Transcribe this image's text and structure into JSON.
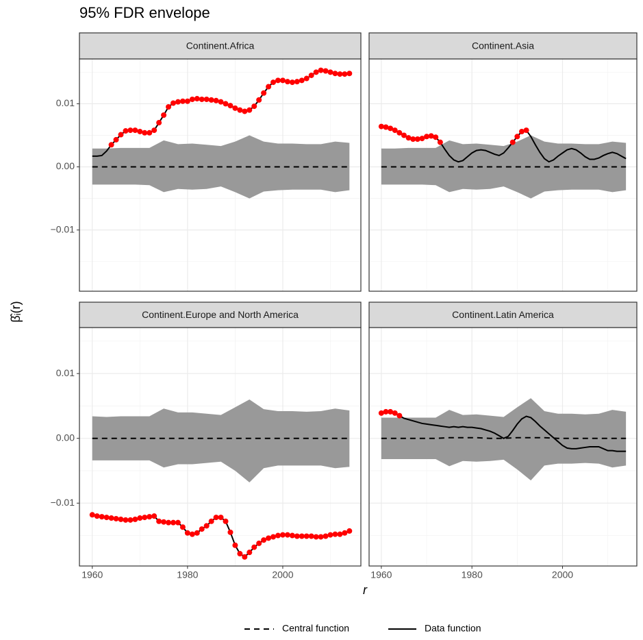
{
  "chart_data": {
    "type": "line",
    "title": "95% FDR envelope",
    "xlabel": "r",
    "ylabel": "β̂ᵢ(r)",
    "xlim": [
      1957.3,
      2016.4
    ],
    "ylim": [
      -0.0197,
      0.0171
    ],
    "xticks": [
      1960,
      1980,
      2000
    ],
    "yticks": [
      {
        "value": -0.01,
        "label": "−0.01"
      },
      {
        "value": 0,
        "label": "0.00"
      },
      0.01
    ],
    "grid": true,
    "data_color": "#000000",
    "point_color": "#ff0000",
    "envelope_color": "#999999",
    "central_name": "Central function",
    "data_name": "Data function",
    "x": [
      1960,
      1961,
      1962,
      1963,
      1964,
      1965,
      1966,
      1967,
      1968,
      1969,
      1970,
      1971,
      1972,
      1973,
      1974,
      1975,
      1976,
      1977,
      1978,
      1979,
      1980,
      1981,
      1982,
      1983,
      1984,
      1985,
      1986,
      1987,
      1988,
      1989,
      1990,
      1991,
      1992,
      1993,
      1994,
      1995,
      1996,
      1997,
      1998,
      1999,
      2000,
      2001,
      2002,
      2003,
      2004,
      2005,
      2006,
      2007,
      2008,
      2009,
      2010,
      2011,
      2012,
      2013,
      2014
    ],
    "envelope_x": [
      1960,
      1963,
      1966,
      1969,
      1972,
      1975,
      1978,
      1981,
      1984,
      1987,
      1990,
      1993,
      1996,
      1999,
      2002,
      2005,
      2008,
      2011,
      2014
    ],
    "panels": [
      {
        "name": "Continent.Africa",
        "values": [
          0.0017,
          0.0017,
          0.0018,
          0.0025,
          0.0035,
          0.0043,
          0.0051,
          0.0057,
          0.0058,
          0.0058,
          0.0056,
          0.0054,
          0.0054,
          0.0058,
          0.007,
          0.0082,
          0.0095,
          0.0101,
          0.0103,
          0.0104,
          0.0104,
          0.0107,
          0.0108,
          0.0107,
          0.0107,
          0.0106,
          0.0105,
          0.0103,
          0.01,
          0.0097,
          0.0093,
          0.009,
          0.0088,
          0.009,
          0.0096,
          0.0106,
          0.0117,
          0.0127,
          0.0134,
          0.0137,
          0.0137,
          0.0135,
          0.0134,
          0.0135,
          0.0137,
          0.014,
          0.0145,
          0.015,
          0.0153,
          0.0152,
          0.015,
          0.0148,
          0.0147,
          0.0147,
          0.0148
        ],
        "envelope_high": [
          0.0029,
          0.0029,
          0.003,
          0.003,
          0.003,
          0.0042,
          0.0036,
          0.0037,
          0.0035,
          0.0033,
          0.004,
          0.005,
          0.004,
          0.0037,
          0.0037,
          0.0036,
          0.0036,
          0.004,
          0.0038
        ],
        "envelope_low": [
          -0.0028,
          -0.0028,
          -0.0028,
          -0.0028,
          -0.0029,
          -0.004,
          -0.0035,
          -0.0036,
          -0.0035,
          -0.0031,
          -0.004,
          -0.005,
          -0.0039,
          -0.0037,
          -0.0036,
          -0.0036,
          -0.0036,
          -0.004,
          -0.0037
        ],
        "central": [
          0,
          0,
          0,
          0,
          0,
          0,
          0,
          0,
          0,
          0,
          0,
          0,
          0,
          0,
          0,
          0,
          0,
          0,
          0
        ]
      },
      {
        "name": "Continent.Asia",
        "values": [
          0.0064,
          0.0063,
          0.0061,
          0.0058,
          0.0054,
          0.005,
          0.0046,
          0.0044,
          0.0044,
          0.0045,
          0.0048,
          0.0049,
          0.0047,
          0.0039,
          0.0028,
          0.0018,
          0.0011,
          0.0008,
          0.001,
          0.0016,
          0.0022,
          0.0026,
          0.0027,
          0.0026,
          0.0023,
          0.002,
          0.0018,
          0.0022,
          0.003,
          0.0039,
          0.0048,
          0.0056,
          0.0058,
          0.0048,
          0.0035,
          0.0023,
          0.0013,
          0.0008,
          0.0011,
          0.0017,
          0.0022,
          0.0027,
          0.0029,
          0.0027,
          0.0022,
          0.0016,
          0.0012,
          0.0012,
          0.0014,
          0.0018,
          0.0021,
          0.0023,
          0.0021,
          0.0017,
          0.0013
        ],
        "envelope_high": [
          0.0029,
          0.0029,
          0.003,
          0.003,
          0.003,
          0.0042,
          0.0036,
          0.0037,
          0.0035,
          0.0033,
          0.004,
          0.005,
          0.004,
          0.0037,
          0.0037,
          0.0036,
          0.0036,
          0.004,
          0.0038
        ],
        "envelope_low": [
          -0.0028,
          -0.0028,
          -0.0028,
          -0.0028,
          -0.0029,
          -0.004,
          -0.0035,
          -0.0036,
          -0.0035,
          -0.0031,
          -0.004,
          -0.005,
          -0.0039,
          -0.0037,
          -0.0036,
          -0.0036,
          -0.0036,
          -0.004,
          -0.0037
        ],
        "central": [
          0,
          0,
          0,
          0,
          0,
          0,
          0,
          0,
          0,
          0,
          0,
          0,
          0,
          0,
          0,
          0,
          0,
          0,
          0
        ]
      },
      {
        "name": "Continent.Europe and North America",
        "values": [
          -0.0118,
          -0.012,
          -0.0121,
          -0.0122,
          -0.0123,
          -0.0124,
          -0.0125,
          -0.0126,
          -0.0126,
          -0.0125,
          -0.0123,
          -0.0122,
          -0.0121,
          -0.012,
          -0.0128,
          -0.0129,
          -0.013,
          -0.013,
          -0.013,
          -0.0137,
          -0.0146,
          -0.0148,
          -0.0146,
          -0.014,
          -0.0135,
          -0.0128,
          -0.0122,
          -0.0122,
          -0.0128,
          -0.0145,
          -0.0165,
          -0.0178,
          -0.0183,
          -0.0176,
          -0.0168,
          -0.0162,
          -0.0157,
          -0.0154,
          -0.0152,
          -0.015,
          -0.0149,
          -0.0149,
          -0.015,
          -0.0151,
          -0.0151,
          -0.0151,
          -0.0151,
          -0.0152,
          -0.0152,
          -0.0151,
          -0.0149,
          -0.0148,
          -0.0148,
          -0.0146,
          -0.0143
        ],
        "envelope_high": [
          0.0034,
          0.0033,
          0.0034,
          0.0034,
          0.0034,
          0.0046,
          0.004,
          0.004,
          0.0038,
          0.0036,
          0.0048,
          0.006,
          0.0045,
          0.0042,
          0.0042,
          0.0041,
          0.0042,
          0.0046,
          0.0043
        ],
        "envelope_low": [
          -0.0034,
          -0.0034,
          -0.0034,
          -0.0034,
          -0.0034,
          -0.0045,
          -0.004,
          -0.004,
          -0.0038,
          -0.0036,
          -0.005,
          -0.0068,
          -0.0046,
          -0.0042,
          -0.0042,
          -0.0042,
          -0.0042,
          -0.0046,
          -0.0044
        ],
        "central": [
          0,
          0,
          0,
          0,
          0,
          0,
          0,
          0,
          0,
          0,
          0,
          0,
          0,
          0,
          0,
          0,
          0,
          0,
          0
        ]
      },
      {
        "name": "Continent.Latin America",
        "values": [
          0.0039,
          0.0041,
          0.0041,
          0.0039,
          0.0035,
          0.0031,
          0.0029,
          0.0027,
          0.0025,
          0.0023,
          0.0022,
          0.0021,
          0.002,
          0.0019,
          0.0018,
          0.0017,
          0.0018,
          0.0017,
          0.0018,
          0.0017,
          0.0017,
          0.0016,
          0.0015,
          0.0013,
          0.0011,
          0.0008,
          0.0004,
          0.0,
          0.0003,
          0.0012,
          0.0022,
          0.003,
          0.0034,
          0.0032,
          0.0026,
          0.0019,
          0.0013,
          0.0007,
          0.0001,
          -0.0005,
          -0.0011,
          -0.0015,
          -0.0016,
          -0.0016,
          -0.0015,
          -0.0014,
          -0.0013,
          -0.0013,
          -0.0013,
          -0.0016,
          -0.0019,
          -0.0019,
          -0.002,
          -0.002,
          -0.002
        ],
        "envelope_high": [
          0.0032,
          0.0032,
          0.0032,
          0.0032,
          0.0032,
          0.0044,
          0.0036,
          0.0037,
          0.0035,
          0.0033,
          0.0048,
          0.0062,
          0.0042,
          0.0038,
          0.0038,
          0.0037,
          0.0038,
          0.0044,
          0.0041
        ],
        "envelope_low": [
          -0.0032,
          -0.0032,
          -0.0032,
          -0.0032,
          -0.0032,
          -0.0043,
          -0.0035,
          -0.0036,
          -0.0035,
          -0.0033,
          -0.0048,
          -0.0065,
          -0.0042,
          -0.0039,
          -0.0039,
          -0.0038,
          -0.0039,
          -0.0045,
          -0.0042
        ],
        "central": [
          0,
          0,
          0,
          0,
          0,
          0.0001,
          0.0001,
          0.0001,
          0,
          0,
          0.0001,
          0.0001,
          0.0001,
          0,
          0,
          0,
          0,
          0,
          0
        ]
      }
    ]
  }
}
